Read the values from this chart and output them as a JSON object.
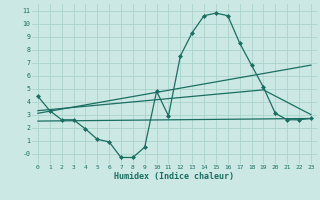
{
  "xlabel": "Humidex (Indice chaleur)",
  "background_color": "#cce8e4",
  "grid_color": "#aad4cc",
  "line_color": "#1a6e62",
  "xlim": [
    -0.5,
    23.5
  ],
  "ylim": [
    -0.8,
    11.5
  ],
  "xticks": [
    0,
    1,
    2,
    3,
    4,
    5,
    6,
    7,
    8,
    9,
    10,
    11,
    12,
    13,
    14,
    15,
    16,
    17,
    18,
    19,
    20,
    21,
    22,
    23
  ],
  "yticks": [
    0,
    1,
    2,
    3,
    4,
    5,
    6,
    7,
    8,
    9,
    10,
    11
  ],
  "ytick_labels": [
    "-0",
    "1",
    "2",
    "3",
    "4",
    "5",
    "6",
    "7",
    "8",
    "9",
    "10",
    "11"
  ],
  "series_main": {
    "x": [
      0,
      1,
      2,
      3,
      4,
      5,
      6,
      7,
      8,
      9,
      10,
      11,
      12,
      13,
      14,
      15,
      16,
      17,
      18,
      19,
      20,
      21,
      22,
      23
    ],
    "y": [
      4.4,
      3.3,
      2.6,
      2.6,
      1.9,
      1.1,
      0.9,
      -0.3,
      -0.3,
      0.5,
      4.8,
      2.9,
      7.5,
      9.3,
      10.6,
      10.8,
      10.6,
      8.5,
      6.8,
      5.1,
      3.1,
      2.6,
      2.6,
      2.7
    ]
  },
  "series_line1": {
    "x": [
      0,
      23
    ],
    "y": [
      3.1,
      6.8
    ]
  },
  "series_line2": {
    "x": [
      0,
      23
    ],
    "y": [
      2.5,
      2.7
    ]
  },
  "series_line3": {
    "x": [
      0,
      19,
      23
    ],
    "y": [
      3.3,
      4.9,
      3.0
    ]
  }
}
